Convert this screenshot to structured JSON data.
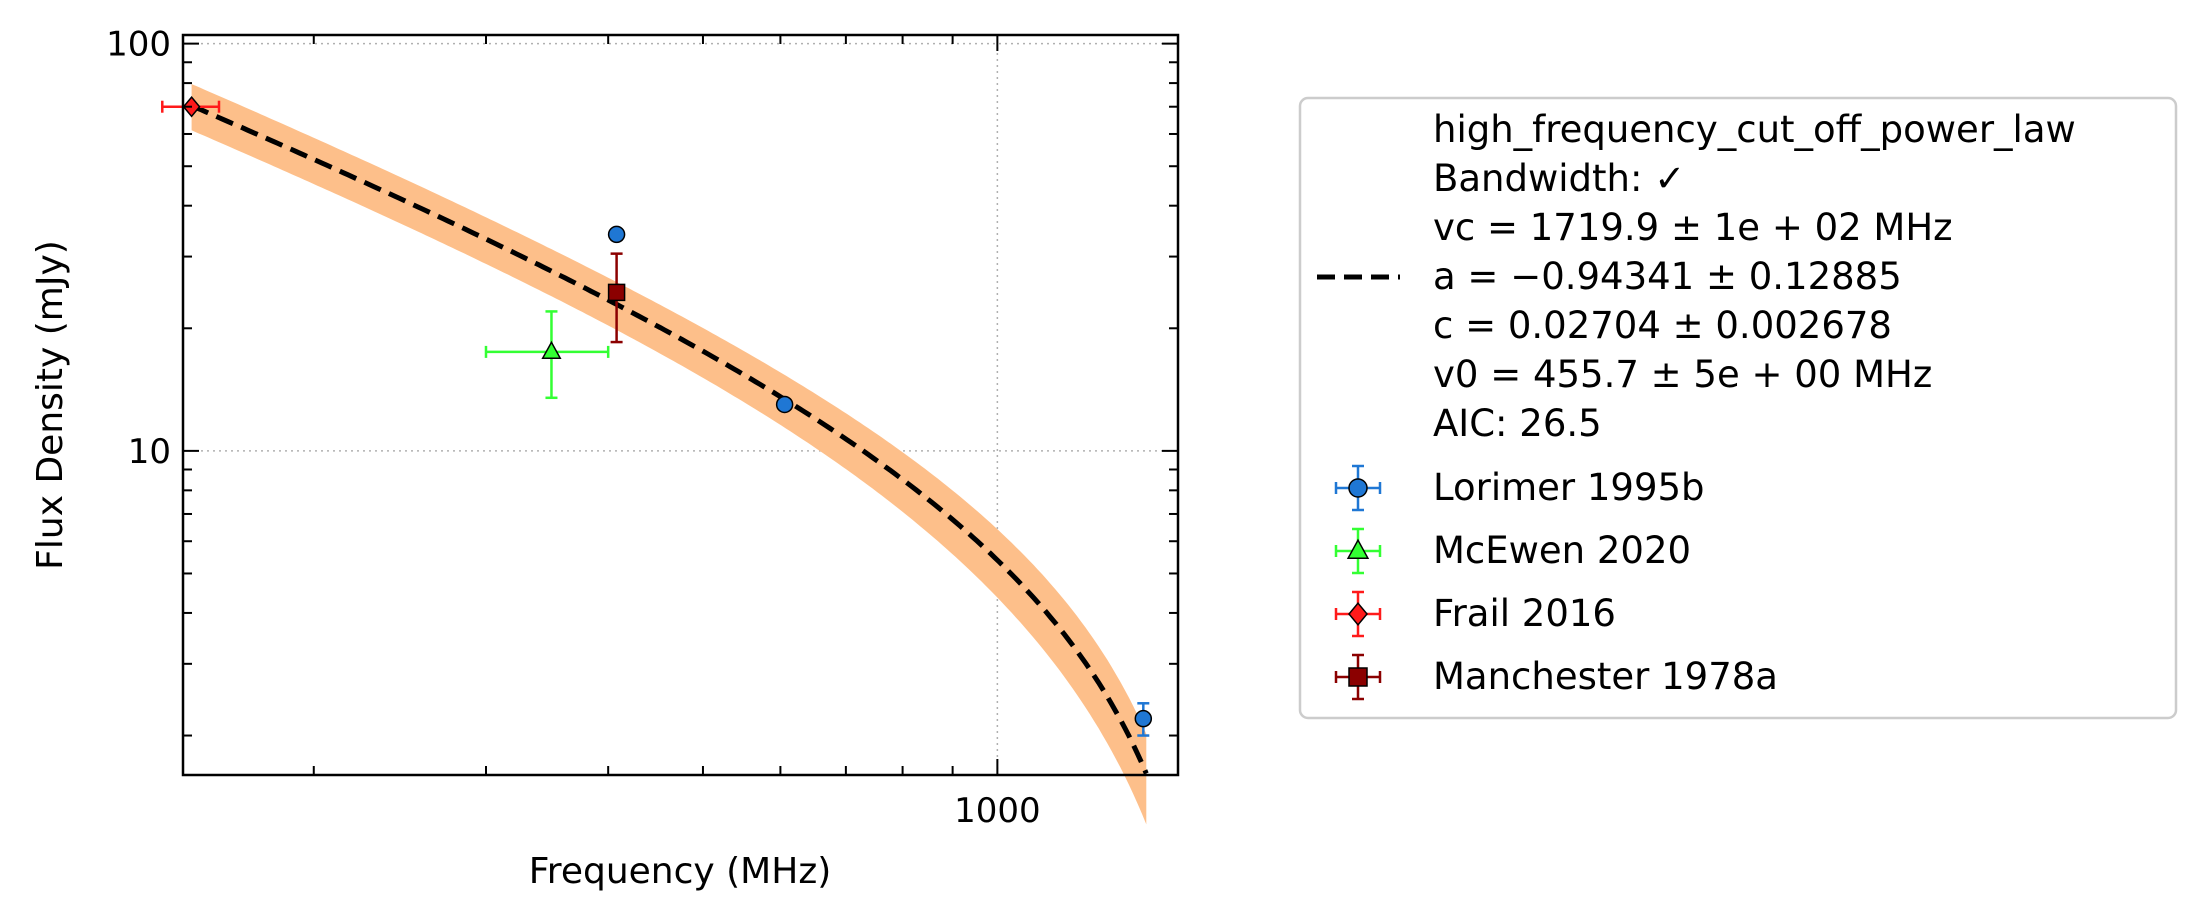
{
  "chart_data": {
    "type": "scatter",
    "xlabel": "Frequency (MHz)",
    "ylabel": "Flux Density (mJy)",
    "x_scale": "log",
    "y_scale": "log",
    "xlim": [
      147,
      1530
    ],
    "ylim": [
      1.6,
      105
    ],
    "x_ticks": [
      {
        "value": 1000,
        "label": "1000"
      }
    ],
    "y_ticks": [
      {
        "value": 10,
        "label": "10"
      },
      {
        "value": 100,
        "label": "100"
      }
    ],
    "grid": true,
    "legend_position": "outside right",
    "colors": {
      "fit_line": "#000000",
      "fit_band": "#fdbf8a",
      "Lorimer 1995b": "#1f77d4",
      "McEwen 2020": "#33ff33",
      "Frail 2016": "#ff1a1a",
      "Manchester 1978a": "#8b0000"
    },
    "fit": {
      "label_lines": [
        "high_frequency_cut_off_power_law",
        "Bandwidth: ✓",
        "vc = 1719.9 ± 1e + 02 MHz",
        "a = −0.94341 ± 0.12885",
        "c = 0.02704 ± 0.002678",
        "v0 = 455.7 ± 5e + 00 MHz",
        "AIC: 26.5"
      ],
      "vc": 1719.9,
      "a": -0.94341,
      "c": 0.02704,
      "v0": 455.7
    },
    "series": [
      {
        "name": "Lorimer 1995b",
        "marker": "circle",
        "points": [
          {
            "x": 408,
            "y": 34,
            "yerr": 0
          },
          {
            "x": 606,
            "y": 13,
            "yerr": 0
          },
          {
            "x": 1410,
            "y": 2.2,
            "yerr": 0.2
          }
        ]
      },
      {
        "name": "McEwen 2020",
        "marker": "triangle",
        "points": [
          {
            "x": 350,
            "y": 17.5,
            "xlo": 300,
            "xhi": 400,
            "ylo": 13.5,
            "yhi": 22
          }
        ]
      },
      {
        "name": "Frail 2016",
        "marker": "diamond",
        "points": [
          {
            "x": 150,
            "y": 70,
            "xlo": 140,
            "xhi": 160,
            "ylo": 70,
            "yhi": 70
          }
        ]
      },
      {
        "name": "Manchester 1978a",
        "marker": "square",
        "points": [
          {
            "x": 408,
            "y": 24.5,
            "ylo": 18.5,
            "yhi": 30.5
          }
        ]
      }
    ]
  }
}
